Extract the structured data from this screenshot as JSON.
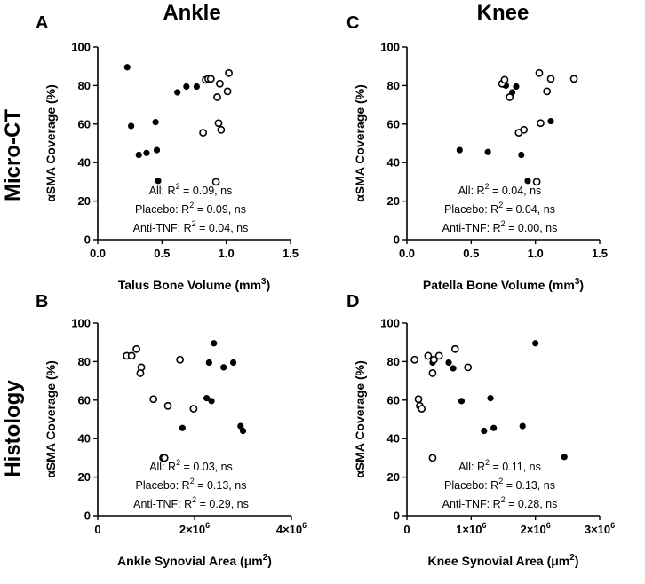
{
  "figure": {
    "col_titles": [
      "Ankle",
      "Knee"
    ],
    "row_titles": [
      "Micro-CT",
      "Histology"
    ]
  },
  "legend": {
    "placebo_fill": "#000000",
    "anti_tnf_fill": "#ffffff",
    "stroke": "#000000"
  },
  "chart_data": [
    {
      "panel": "A",
      "type": "scatter",
      "xlabel": "Talus Bone Volume (mm3)",
      "xlabel_main": "Talus Bone Volume (mm",
      "xlabel_sup": "3",
      "xlabel_tail": ")",
      "ylabel": "αSMA Coverage (%)",
      "xlim": [
        0,
        1.5
      ],
      "ylim": [
        0,
        100
      ],
      "xticks": [
        0,
        0.5,
        1.0,
        1.5
      ],
      "xtick_labels": [
        "0.0",
        "0.5",
        "1.0",
        "1.5"
      ],
      "yticks": [
        0,
        20,
        40,
        60,
        80,
        100
      ],
      "ytick_labels": [
        "0",
        "20",
        "40",
        "60",
        "80",
        "100"
      ],
      "annotations": [
        {
          "pre": "All: R",
          "sup": "2",
          "post": " = 0.09, ns"
        },
        {
          "pre": "Placebo: R",
          "sup": "2",
          "post": " = 0.09, ns"
        },
        {
          "pre": "Anti-TNF: R",
          "sup": "2",
          "post": " = 0.04, ns"
        }
      ],
      "series": [
        {
          "name": "Placebo",
          "x": [
            0.23,
            0.26,
            0.32,
            0.38,
            0.45,
            0.46,
            0.47,
            0.62,
            0.69,
            0.77
          ],
          "y": [
            89.5,
            59,
            44,
            45,
            61,
            46.5,
            30.5,
            76.5,
            79.5,
            79.5
          ]
        },
        {
          "name": "Anti-TNF",
          "x": [
            0.84,
            0.86,
            0.88,
            0.92,
            0.93,
            0.94,
            0.95,
            0.96,
            0.82,
            1.01,
            1.02
          ],
          "y": [
            83,
            83.5,
            83.5,
            30,
            74,
            60.5,
            81,
            57,
            55.5,
            77,
            86.5
          ]
        }
      ]
    },
    {
      "panel": "C",
      "type": "scatter",
      "xlabel": "Patella Bone Volume (mm3)",
      "xlabel_main": "Patella Bone Volume (mm",
      "xlabel_sup": "3",
      "xlabel_tail": ")",
      "ylabel": "αSMA Coverage (%)",
      "xlim": [
        0,
        1.5
      ],
      "ylim": [
        0,
        100
      ],
      "xticks": [
        0,
        0.5,
        1.0,
        1.5
      ],
      "xtick_labels": [
        "0.0",
        "0.5",
        "1.0",
        "1.5"
      ],
      "yticks": [
        0,
        20,
        40,
        60,
        80,
        100
      ],
      "ytick_labels": [
        "0",
        "20",
        "40",
        "60",
        "80",
        "100"
      ],
      "annotations": [
        {
          "pre": "All: R",
          "sup": "2",
          "post": " = 0.04, ns"
        },
        {
          "pre": "Placebo: R",
          "sup": "2",
          "post": " = 0.04, ns"
        },
        {
          "pre": "Anti-TNF: R",
          "sup": "2",
          "post": " = 0.00, ns"
        }
      ],
      "series": [
        {
          "name": "Placebo",
          "x": [
            0.41,
            0.63,
            0.75,
            0.77,
            0.82,
            0.85,
            0.89,
            0.94,
            1.12
          ],
          "y": [
            46.5,
            45.5,
            80.5,
            80,
            76.5,
            79.5,
            44,
            30.5,
            61.5
          ]
        },
        {
          "name": "Anti-TNF",
          "x": [
            0.74,
            0.76,
            0.8,
            0.87,
            0.91,
            1.01,
            1.03,
            1.04,
            1.09,
            1.12,
            1.3
          ],
          "y": [
            81,
            83,
            74,
            55.5,
            57,
            30,
            86.5,
            60.5,
            77,
            83.5,
            83.5
          ]
        }
      ]
    },
    {
      "panel": "B",
      "type": "scatter",
      "xlabel": "Ankle Synovial Area (μm2)",
      "xlabel_main": "Ankle Synovial Area (μm",
      "xlabel_sup": "2",
      "xlabel_tail": ")",
      "ylabel": "αSMA Coverage (%)",
      "xlim": [
        0,
        4000000
      ],
      "ylim": [
        0,
        100
      ],
      "xticks": [
        0,
        2000000,
        4000000
      ],
      "xtick_labels": [
        "0",
        "2×10",
        "4×10"
      ],
      "xtick_sup": [
        "",
        "6",
        "6"
      ],
      "yticks": [
        0,
        20,
        40,
        60,
        80,
        100
      ],
      "ytick_labels": [
        "0",
        "20",
        "40",
        "60",
        "80",
        "100"
      ],
      "annotations": [
        {
          "pre": "All: R",
          "sup": "2",
          "post": " = 0.03, ns"
        },
        {
          "pre": "Placebo: R",
          "sup": "2",
          "post": " = 0.13, ns"
        },
        {
          "pre": "Anti-TNF: R",
          "sup": "2",
          "post": " = 0.29, ns"
        }
      ],
      "series": [
        {
          "name": "Placebo",
          "x": [
            1750000,
            2250000,
            2300000,
            2350000,
            2400000,
            2600000,
            2800000,
            2950000,
            3000000
          ],
          "y": [
            45.5,
            61,
            79.5,
            59.5,
            89.5,
            77,
            79.5,
            46.5,
            44
          ]
        },
        {
          "name": "Anti-TNF",
          "x": [
            600000,
            700000,
            800000,
            900000,
            880000,
            1150000,
            1350000,
            1380000,
            1450000,
            1700000,
            1980000
          ],
          "y": [
            83,
            83,
            86.5,
            77,
            74,
            60.5,
            30,
            30,
            57,
            81,
            55.5
          ]
        }
      ]
    },
    {
      "panel": "D",
      "type": "scatter",
      "xlabel": "Knee Synovial Area (μm2)",
      "xlabel_main": "Knee Synovial Area (μm",
      "xlabel_sup": "2",
      "xlabel_tail": ")",
      "ylabel": "αSMA Coverage (%)",
      "xlim": [
        0,
        3000000
      ],
      "ylim": [
        0,
        100
      ],
      "xticks": [
        0,
        1000000,
        2000000,
        3000000
      ],
      "xtick_labels": [
        "0",
        "1×10",
        "2×10",
        "3×10"
      ],
      "xtick_sup": [
        "",
        "6",
        "6",
        "6"
      ],
      "yticks": [
        0,
        20,
        40,
        60,
        80,
        100
      ],
      "ytick_labels": [
        "0",
        "20",
        "40",
        "60",
        "80",
        "100"
      ],
      "annotations": [
        {
          "pre": "All: R",
          "sup": "2",
          "post": " = 0.11, ns"
        },
        {
          "pre": "Placebo: R",
          "sup": "2",
          "post": " = 0.13, ns"
        },
        {
          "pre": "Anti-TNF: R",
          "sup": "2",
          "post": " = 0.28, ns"
        }
      ],
      "series": [
        {
          "name": "Placebo",
          "x": [
            400000,
            650000,
            720000,
            850000,
            1200000,
            1300000,
            1350000,
            1800000,
            2000000,
            2450000
          ],
          "y": [
            79.5,
            79.5,
            76.5,
            59.5,
            44,
            61,
            45.5,
            46.5,
            89.5,
            30.5
          ]
        },
        {
          "name": "Anti-TNF",
          "x": [
            120000,
            180000,
            200000,
            230000,
            330000,
            400000,
            400000,
            420000,
            500000,
            750000,
            950000
          ],
          "y": [
            81,
            60.5,
            57,
            55.5,
            83,
            74,
            30,
            81,
            83,
            86.5,
            77
          ]
        }
      ]
    }
  ]
}
